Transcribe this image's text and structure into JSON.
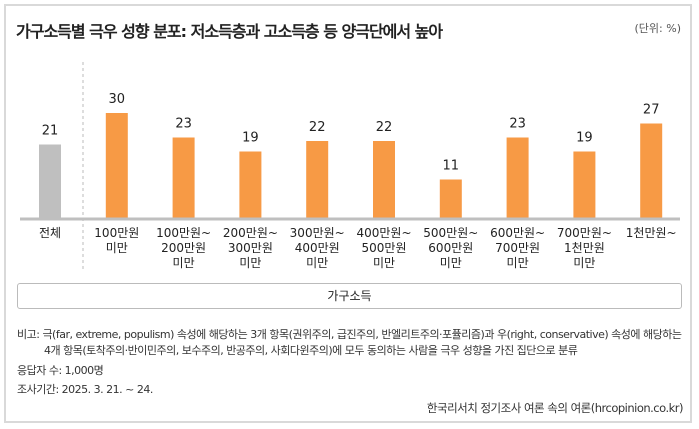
{
  "chart_data": {
    "type": "bar",
    "title": "가구소득별 극우 성향 분포: 저소득층과 고소득층 등 양극단에서 높아",
    "unit_label": "(단위: %)",
    "xlabel": "가구소득",
    "categories": [
      "전체",
      "100만원\n미만",
      "100만원~\n200만원\n미만",
      "200만원~\n300만원\n미만",
      "300만원~\n400만원\n미만",
      "400만원~\n500만원\n미만",
      "500만원~\n600만원\n미만",
      "600만원~\n700만원\n미만",
      "700만원~\n1천만원\n미만",
      "1천만원~"
    ],
    "values": [
      21,
      30,
      23,
      19,
      22,
      22,
      11,
      23,
      19,
      27
    ],
    "colors": {
      "total": "#bfbfbf",
      "group": "#f79a45"
    },
    "ylim": [
      0,
      30
    ],
    "grid": false
  },
  "notes": {
    "remark_line1": "비고:  극(far, extreme, populism) 속성에 해당하는 3개 항목(권위주의, 급진주의, 반엘리트주의·포퓰리즘)과 우(right, conservative) 속성에 해당하는",
    "remark_line2": "4개 항목(토착주의·반이민주의, 보수주의, 반공주의, 사회다윈주의)에 모두 동의하는 사람을 극우 성향을 가진 집단으로 분류",
    "respondents": "응답자 수: 1,000명",
    "period": "조사기간: 2025. 3. 21. ~ 24.",
    "source": "한국리서치 정기조사 여론 속의 여론(hrcopinion.co.kr)"
  }
}
